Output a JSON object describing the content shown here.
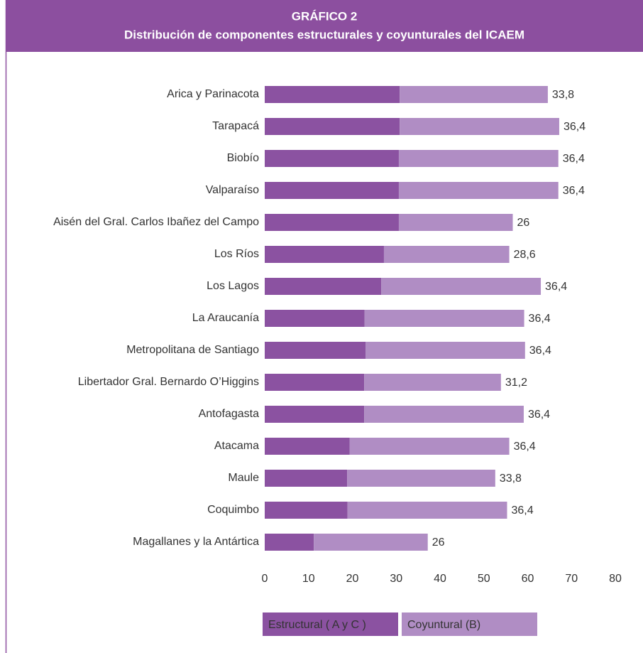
{
  "chart_data": {
    "type": "stacked_bar_horizontal",
    "title": "GRÁFICO 2",
    "subtitle": "Distribución de componentes estructurales y coyunturales del ICAEM",
    "categories": [
      "Arica y Parinacota",
      "Tarapacá",
      "Biobío",
      "Valparaíso",
      "Aisén  del Gral. Carlos Ibañez del Campo",
      "Los Ríos",
      "Los Lagos",
      "La Araucanía",
      "Metropolitana de Santiago",
      "Libertador Gral. Bernardo O’Higgins",
      "Antofagasta",
      "Atacama",
      "Maule",
      "Coquimbo",
      "Magallanes y la Antártica"
    ],
    "series": [
      {
        "name": "Estructural ( A y C )",
        "color": "#8b52a1",
        "values": [
          30.8,
          30.8,
          30.6,
          30.6,
          30.6,
          27.2,
          26.6,
          22.8,
          23.0,
          22.7,
          22.7,
          19.4,
          18.8,
          18.9,
          11.2
        ]
      },
      {
        "name": "Coyuntural (B)",
        "color": "#b08dc4",
        "values": [
          33.8,
          36.4,
          36.4,
          36.4,
          26,
          28.6,
          36.4,
          36.4,
          36.4,
          31.2,
          36.4,
          36.4,
          33.8,
          36.4,
          26
        ],
        "value_labels": [
          "33,8",
          "36,4",
          "36,4",
          "36,4",
          "26",
          "28,6",
          "36,4",
          "36,4",
          "36,4",
          "31,2",
          "36,4",
          "36,4",
          "33,8",
          "36,4",
          "26"
        ]
      }
    ],
    "xlim": [
      0,
      80
    ],
    "xticks": [
      0,
      10,
      20,
      30,
      40,
      50,
      60,
      70,
      80
    ]
  }
}
